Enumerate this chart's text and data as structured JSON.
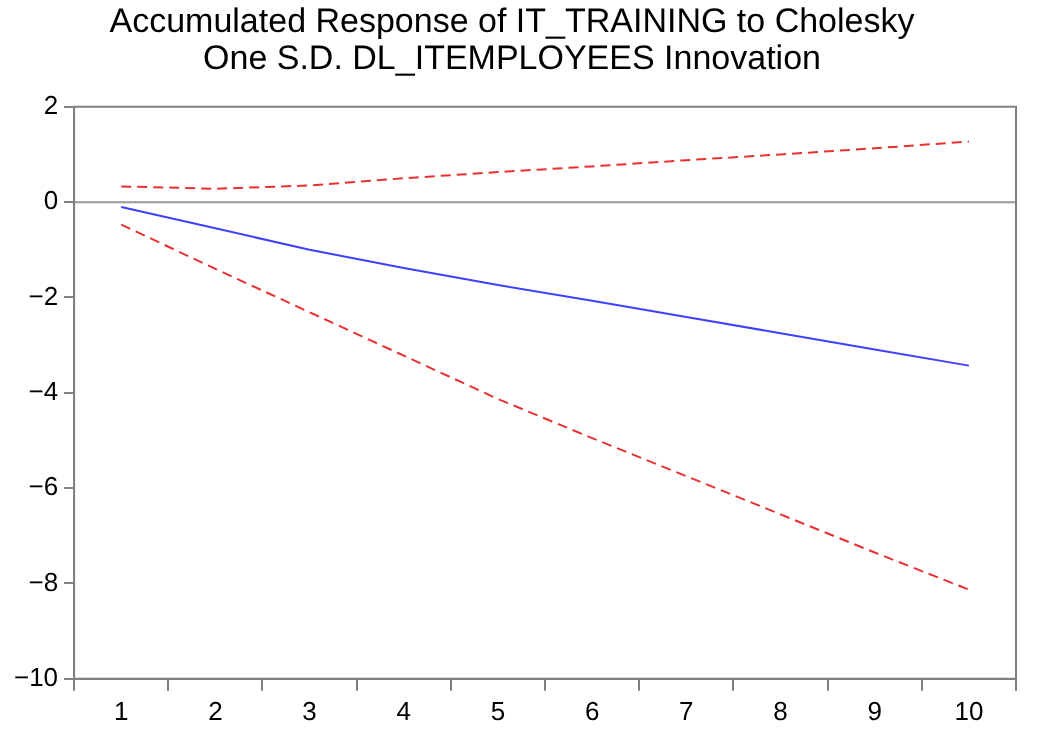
{
  "chart_data": {
    "type": "line",
    "title": "Accumulated Response of IT_TRAINING to Cholesky\nOne S.D. DL_ITEMPLOYEES Innovation",
    "categories": [
      "1",
      "2",
      "3",
      "4",
      "5",
      "6",
      "7",
      "8",
      "9",
      "10"
    ],
    "series": [
      {
        "color": "#4040ff",
        "line_style": "solid",
        "values": [
          -0.1,
          -0.55,
          -1.0,
          -1.38,
          -1.74,
          -2.07,
          -2.41,
          -2.75,
          -3.09,
          -3.43
        ]
      },
      {
        "color": "#e83030",
        "line_style": "dashed",
        "values": [
          0.33,
          0.28,
          0.35,
          0.5,
          0.63,
          0.75,
          0.88,
          1.0,
          1.13,
          1.27
        ]
      },
      {
        "color": "#e83030",
        "line_style": "dashed",
        "values": [
          -0.47,
          -1.4,
          -2.31,
          -3.22,
          -4.13,
          -4.95,
          -5.75,
          -6.55,
          -7.35,
          -8.13
        ]
      }
    ],
    "ylim": [
      -10,
      2
    ],
    "yticks": [
      -10,
      -8,
      -6,
      -4,
      -2,
      0,
      2
    ],
    "ref_lines": [
      {
        "axis": "y",
        "value": 0,
        "color": "#999999"
      }
    ],
    "grid": false,
    "legend": false,
    "marker": "none"
  }
}
